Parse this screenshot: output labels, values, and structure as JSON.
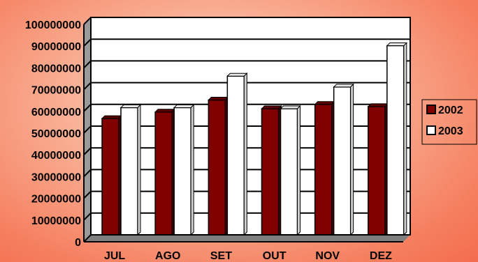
{
  "chart_data": {
    "type": "bar",
    "categories": [
      "JUL",
      "AGO",
      "SET",
      "OUT",
      "NOV",
      "DEZ"
    ],
    "series": [
      {
        "name": "2002",
        "color": "#800000",
        "values": [
          53500000,
          56500000,
          62000000,
          58000000,
          60000000,
          59000000
        ]
      },
      {
        "name": "2003",
        "color": "#ffffff",
        "values": [
          58500000,
          58500000,
          73000000,
          58000000,
          68000000,
          87000000
        ]
      }
    ],
    "ylim": [
      0,
      100000000
    ],
    "yticks": [
      "0",
      "10000000",
      "20000000",
      "30000000",
      "40000000",
      "50000000",
      "60000000",
      "70000000",
      "80000000",
      "90000000",
      "100000000"
    ],
    "grid": true,
    "legend": "right",
    "title": "",
    "xlabel": "",
    "ylabel": ""
  }
}
